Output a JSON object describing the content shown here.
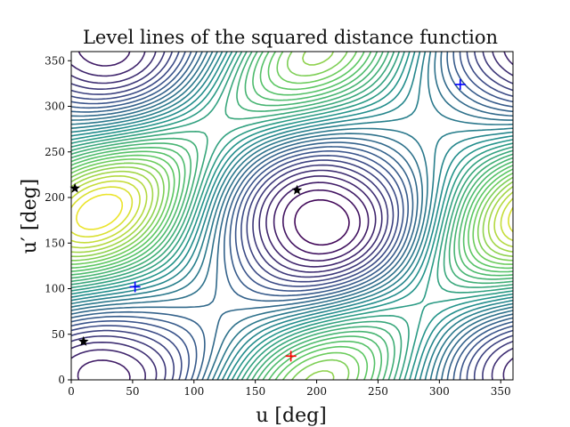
{
  "chart_data": {
    "type": "contour",
    "title": "Level lines of the squared distance function",
    "xlabel": "u [deg]",
    "ylabel": "u′ [deg]",
    "xlim": [
      0,
      360
    ],
    "ylim": [
      0,
      360
    ],
    "xticks": [
      "0",
      "50",
      "100",
      "150",
      "200",
      "250",
      "300",
      "350"
    ],
    "yticks": [
      "0",
      "50",
      "100",
      "150",
      "200",
      "250",
      "300",
      "350"
    ],
    "colormap": "viridis",
    "grid": false,
    "legend": "none",
    "markers": [
      {
        "type": "max",
        "symbol": "+",
        "color": "#ff0000",
        "x": 179,
        "y": 26
      },
      {
        "type": "min",
        "symbol": "+",
        "color": "#0000ff",
        "x": 52,
        "y": 102
      },
      {
        "type": "min",
        "symbol": "+",
        "color": "#0000ff",
        "x": 317,
        "y": 324
      },
      {
        "type": "saddle",
        "symbol": "star",
        "color": "#000000",
        "x": 3,
        "y": 210
      },
      {
        "type": "saddle",
        "symbol": "star",
        "color": "#000000",
        "x": 10,
        "y": 42
      },
      {
        "type": "saddle",
        "symbol": "star",
        "color": "#000000",
        "x": 184,
        "y": 208
      }
    ]
  }
}
